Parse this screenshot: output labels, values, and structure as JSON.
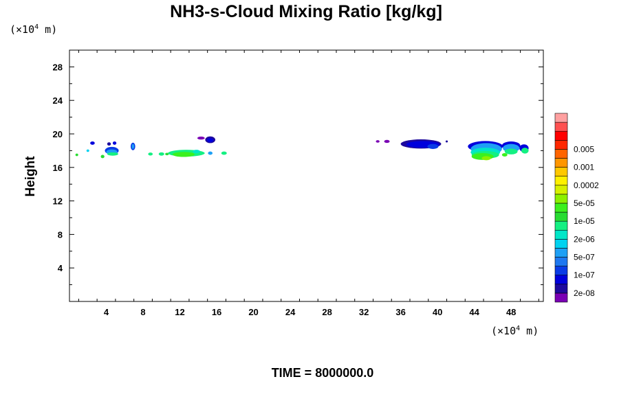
{
  "chart_data": {
    "type": "heatmap",
    "title": "NH3-s-Cloud Mixing Ratio [kg/kg]",
    "ylabel": "Height",
    "xlabel": "",
    "x_unit": {
      "prefix": "(×10",
      "exponent": "4",
      "suffix": " m)"
    },
    "y_unit": {
      "prefix": "(×10",
      "exponent": "4",
      "suffix": " m)"
    },
    "xlim": [
      0,
      51.5
    ],
    "ylim": [
      0,
      30
    ],
    "x_ticks": [
      4,
      8,
      12,
      16,
      20,
      24,
      28,
      32,
      36,
      40,
      44,
      48
    ],
    "x_tick_labels": [
      "4",
      "8",
      "12",
      "16",
      "20",
      "24",
      "28",
      "32",
      "36",
      "40",
      "44",
      "48"
    ],
    "y_ticks": [
      4,
      8,
      12,
      16,
      20,
      24,
      28
    ],
    "y_tick_labels": [
      "4",
      "8",
      "12",
      "16",
      "20",
      "24",
      "28"
    ],
    "footer": "TIME = 8000000.0",
    "grid": false,
    "legend": "right colorbar",
    "colorbar": {
      "colors": [
        "#7a00b4",
        "#1e0a9e",
        "#0000dc",
        "#0a3ce6",
        "#1e78f0",
        "#1ea0f5",
        "#00d2f0",
        "#00e6c8",
        "#14f082",
        "#28dc32",
        "#3cf01e",
        "#8cf000",
        "#d7f000",
        "#fff000",
        "#ffc800",
        "#ff9600",
        "#ff6400",
        "#ff2800",
        "#ff0000",
        "#ff5050",
        "#ffa0a0"
      ],
      "labels": [
        "2e-08",
        "1e-07",
        "5e-07",
        "2e-06",
        "1e-05",
        "5e-05",
        "0.0002",
        "0.001",
        "0.005"
      ]
    },
    "regions": [
      {
        "x": 2.5,
        "y": 18.9,
        "rx": 0.25,
        "ry": 0.2,
        "color": "#0000dc"
      },
      {
        "x": 4.3,
        "y": 18.8,
        "rx": 0.2,
        "ry": 0.2,
        "color": "#1e0a9e"
      },
      {
        "x": 4.9,
        "y": 18.9,
        "rx": 0.2,
        "ry": 0.2,
        "color": "#0000dc"
      },
      {
        "x": 4.6,
        "y": 18.0,
        "rx": 0.75,
        "ry": 0.45,
        "color": "#0a3ce6"
      },
      {
        "x": 4.6,
        "y": 17.85,
        "rx": 0.6,
        "ry": 0.3,
        "color": "#1ea0f5"
      },
      {
        "x": 4.7,
        "y": 17.6,
        "rx": 0.6,
        "ry": 0.2,
        "color": "#14f082"
      },
      {
        "x": 3.6,
        "y": 17.3,
        "rx": 0.2,
        "ry": 0.2,
        "color": "#28dc32"
      },
      {
        "x": 0.8,
        "y": 17.5,
        "rx": 0.15,
        "ry": 0.15,
        "color": "#28dc32"
      },
      {
        "x": 2.0,
        "y": 18.0,
        "rx": 0.15,
        "ry": 0.15,
        "color": "#00d2f0"
      },
      {
        "x": 6.9,
        "y": 18.5,
        "rx": 0.25,
        "ry": 0.45,
        "color": "#0a3ce6"
      },
      {
        "x": 6.9,
        "y": 18.5,
        "rx": 0.13,
        "ry": 0.3,
        "color": "#1ea0f5"
      },
      {
        "x": 8.8,
        "y": 17.6,
        "rx": 0.25,
        "ry": 0.18,
        "color": "#14f082"
      },
      {
        "x": 10.0,
        "y": 17.6,
        "rx": 0.3,
        "ry": 0.2,
        "color": "#14f082"
      },
      {
        "x": 10.6,
        "y": 17.6,
        "rx": 0.2,
        "ry": 0.15,
        "color": "#28dc32"
      },
      {
        "x": 12.7,
        "y": 17.7,
        "rx": 2.0,
        "ry": 0.4,
        "color": "#14f082"
      },
      {
        "x": 12.4,
        "y": 17.55,
        "rx": 1.2,
        "ry": 0.3,
        "color": "#3cf01e"
      },
      {
        "x": 13.8,
        "y": 17.9,
        "rx": 0.4,
        "ry": 0.2,
        "color": "#00e6c8"
      },
      {
        "x": 14.3,
        "y": 19.5,
        "rx": 0.4,
        "ry": 0.18,
        "color": "#7a00b4"
      },
      {
        "x": 15.3,
        "y": 19.3,
        "rx": 0.55,
        "ry": 0.4,
        "color": "#1e0a9e"
      },
      {
        "x": 15.3,
        "y": 19.25,
        "rx": 0.35,
        "ry": 0.25,
        "color": "#0000dc"
      },
      {
        "x": 15.3,
        "y": 17.7,
        "rx": 0.25,
        "ry": 0.2,
        "color": "#1ea0f5"
      },
      {
        "x": 16.8,
        "y": 17.7,
        "rx": 0.3,
        "ry": 0.2,
        "color": "#14f082"
      },
      {
        "x": 33.5,
        "y": 19.1,
        "rx": 0.2,
        "ry": 0.15,
        "color": "#7a00b4"
      },
      {
        "x": 34.5,
        "y": 19.1,
        "rx": 0.3,
        "ry": 0.18,
        "color": "#7a00b4"
      },
      {
        "x": 38.2,
        "y": 18.8,
        "rx": 2.2,
        "ry": 0.55,
        "color": "#1e0a9e"
      },
      {
        "x": 38.4,
        "y": 18.75,
        "rx": 1.8,
        "ry": 0.4,
        "color": "#0000dc"
      },
      {
        "x": 39.5,
        "y": 18.5,
        "rx": 0.6,
        "ry": 0.3,
        "color": "#0a3ce6"
      },
      {
        "x": 41.0,
        "y": 19.1,
        "rx": 0.12,
        "ry": 0.12,
        "color": "#1e0a9e"
      },
      {
        "x": 45.2,
        "y": 18.5,
        "rx": 1.9,
        "ry": 0.65,
        "color": "#0000dc"
      },
      {
        "x": 45.3,
        "y": 18.2,
        "rx": 1.7,
        "ry": 0.7,
        "color": "#1ea0f5"
      },
      {
        "x": 45.2,
        "y": 17.8,
        "rx": 1.6,
        "ry": 0.55,
        "color": "#00e6c8"
      },
      {
        "x": 45.2,
        "y": 17.5,
        "rx": 1.5,
        "ry": 0.45,
        "color": "#14f082"
      },
      {
        "x": 44.9,
        "y": 17.3,
        "rx": 1.2,
        "ry": 0.4,
        "color": "#3cf01e"
      },
      {
        "x": 45.3,
        "y": 17.1,
        "rx": 0.5,
        "ry": 0.25,
        "color": "#8cf000"
      },
      {
        "x": 48.0,
        "y": 18.6,
        "rx": 1.0,
        "ry": 0.5,
        "color": "#0000dc"
      },
      {
        "x": 48.0,
        "y": 18.3,
        "rx": 0.9,
        "ry": 0.5,
        "color": "#1ea0f5"
      },
      {
        "x": 48.0,
        "y": 17.9,
        "rx": 0.7,
        "ry": 0.35,
        "color": "#14f082"
      },
      {
        "x": 47.3,
        "y": 17.5,
        "rx": 0.3,
        "ry": 0.2,
        "color": "#3cf01e"
      },
      {
        "x": 49.4,
        "y": 18.3,
        "rx": 0.5,
        "ry": 0.45,
        "color": "#0000dc"
      },
      {
        "x": 49.5,
        "y": 18.0,
        "rx": 0.4,
        "ry": 0.35,
        "color": "#14f082"
      }
    ]
  }
}
